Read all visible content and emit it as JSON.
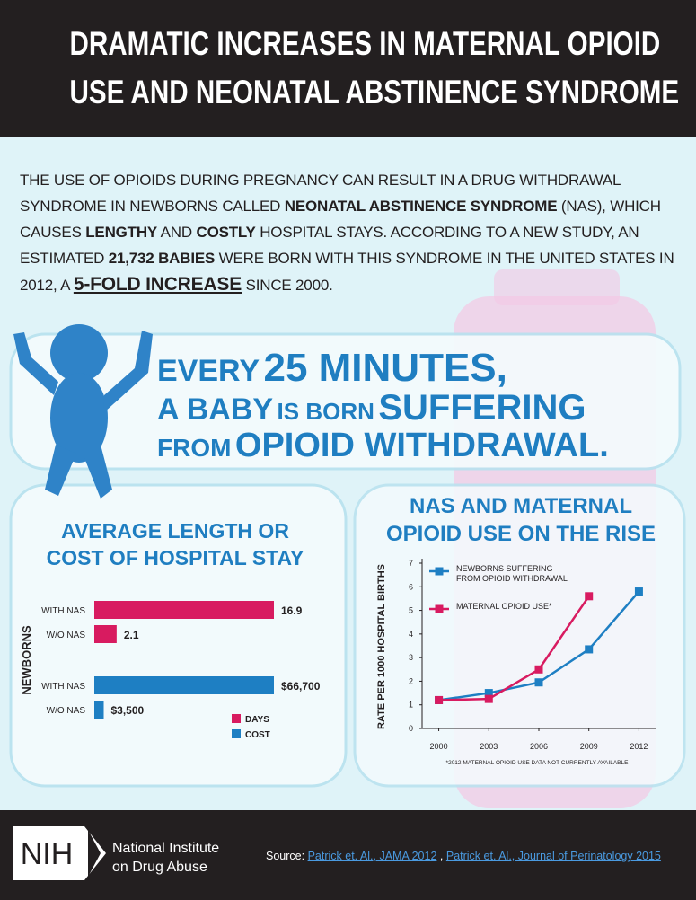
{
  "header": {
    "title_lines": [
      "DRAMATIC INCREASES IN MATERNAL OPIOID",
      "USE AND NEONATAL ABSTINENCE SYNDROME"
    ]
  },
  "intro": {
    "segments": [
      "THE USE OF OPIOIDS DURING PREGNANCY CAN RESULT IN A DRUG WITHDRAWAL SYNDROME IN NEWBORNS CALLED",
      "NEONATAL ABSTINENCE SYNDROME",
      "(NAS), WHICH CAUSES",
      "LENGTHY",
      "AND",
      "COSTLY",
      "HOSPITAL STAYS. ACCORDING TO A NEW STUDY, AN ESTIMATED",
      "21,732 BABIES",
      "WERE BORN WITH THIS SYNDROME IN THE UNITED STATES IN 2012, A",
      "5-FOLD INCREASE",
      "SINCE 2000."
    ]
  },
  "callout": {
    "lines": [
      [
        "EVERY",
        "25 MINUTES,"
      ],
      [
        "A BABY",
        "IS BORN",
        "SUFFERING"
      ],
      [
        "FROM",
        "OPIOID WITHDRAWAL."
      ]
    ]
  },
  "chart_data": [
    {
      "type": "bar",
      "orientation": "horizontal",
      "title": "AVERAGE LENGTH OR COST OF HOSPITAL STAY",
      "ylabel": "NEWBORNS",
      "categories": [
        "WITH NAS",
        "W/O NAS",
        "WITH NAS",
        "W/O NAS"
      ],
      "series": [
        {
          "name": "DAYS",
          "color": "#d81b60",
          "values": [
            16.9,
            2.1,
            null,
            null
          ]
        },
        {
          "name": "COST",
          "color": "#1e7fc3",
          "values": [
            null,
            null,
            66700,
            3500
          ],
          "value_labels": [
            null,
            null,
            "$66,700",
            "$3,500"
          ]
        }
      ]
    },
    {
      "type": "line",
      "title": "NAS AND MATERNAL OPIOID USE ON THE RISE",
      "ylabel": "RATE PER 1000 HOSPITAL BIRTHS",
      "x": [
        2000,
        2003,
        2006,
        2009,
        2012
      ],
      "xlim": [
        1999,
        2013
      ],
      "xticks": [
        2000,
        2003,
        2006,
        2009,
        2012
      ],
      "ylim": [
        0,
        7
      ],
      "yticks": [
        0,
        1,
        2,
        3,
        4,
        5,
        6,
        7
      ],
      "series": [
        {
          "name": "NEWBORNS SUFFERING FROM OPIOID WITHDRAWAL",
          "color": "#1e7fc3",
          "values": [
            1.2,
            1.5,
            1.95,
            3.35,
            5.8
          ]
        },
        {
          "name": "MATERNAL OPIOID USE*",
          "color": "#d81b60",
          "values": [
            1.2,
            1.25,
            2.5,
            5.6,
            null
          ]
        }
      ],
      "footnote": "*2012 MATERNAL OPIOID USE DATA NOT CURRENTLY AVAILABLE"
    }
  ],
  "footer": {
    "logo": "NIH",
    "org_lines": [
      "National Institute",
      "on Drug Abuse"
    ],
    "source_label": "Source:",
    "sources": [
      "Patrick et. Al., JAMA 2012",
      "Patrick et. Al., Journal of Perinatology 2015"
    ],
    "separator": ","
  }
}
